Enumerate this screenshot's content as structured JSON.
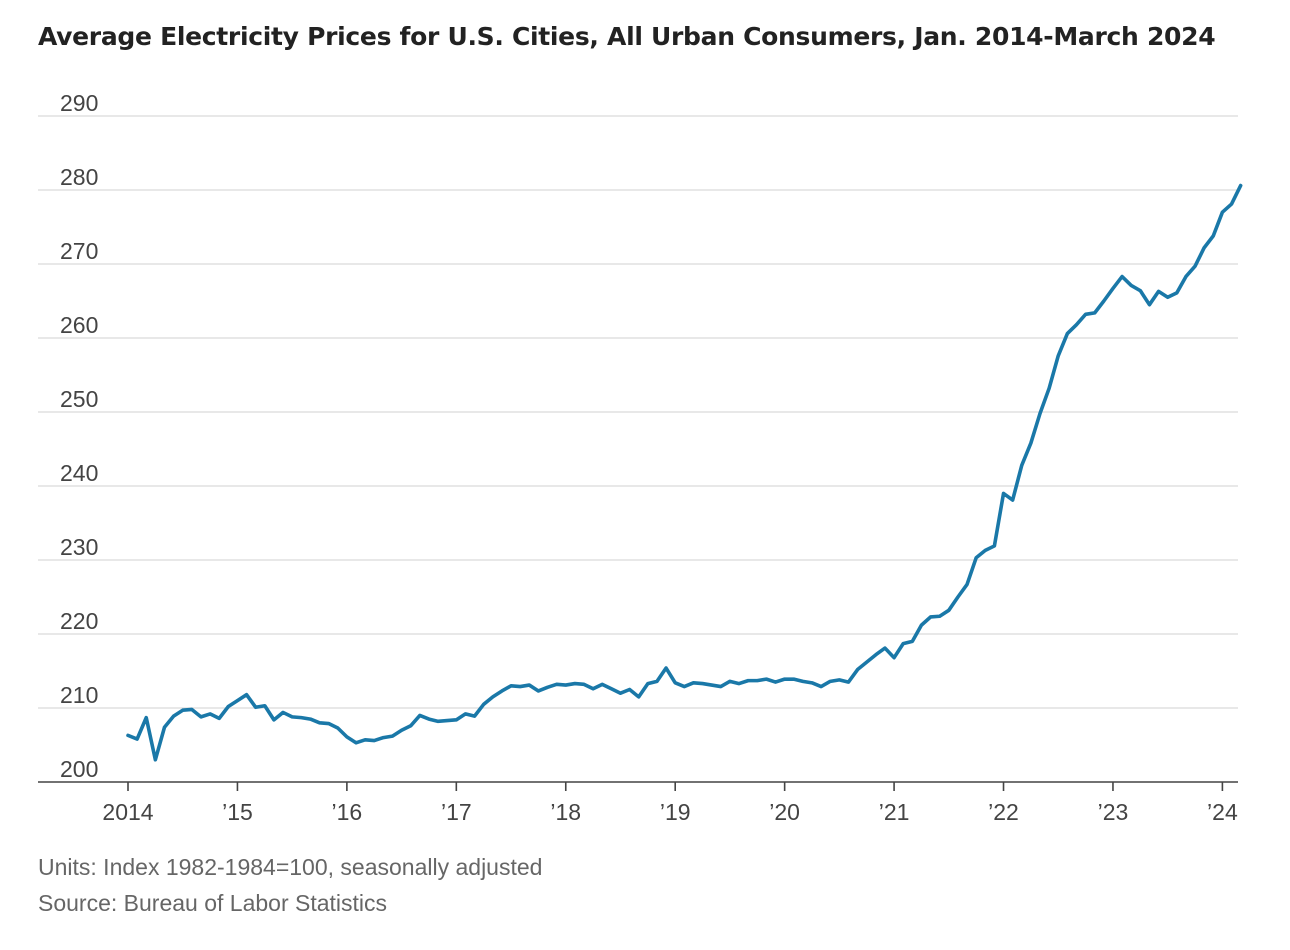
{
  "title": "Average Electricity Prices for U.S. Cities, All Urban Consumers, Jan. 2014-March 2024",
  "footnotes": {
    "units": "Units: Index 1982-1984=100, seasonally adjusted",
    "source": "Source: Bureau of Labor Statistics"
  },
  "colors": {
    "line": "#1a78a8",
    "grid": "#d9d9d9",
    "axis": "#444444",
    "tick_text": "#444444"
  },
  "chart_data": {
    "type": "line",
    "title": "Average Electricity Prices for U.S. Cities, All Urban Consumers, Jan. 2014-March 2024",
    "xlabel": "",
    "ylabel": "",
    "ylim": [
      200,
      290
    ],
    "xlim": [
      "2014-01",
      "2024-03"
    ],
    "y_ticks": [
      200,
      210,
      220,
      230,
      240,
      250,
      260,
      270,
      280,
      290
    ],
    "y_tick_labels": [
      "200",
      "210",
      "220",
      "230",
      "240",
      "250",
      "260",
      "270",
      "280",
      "290"
    ],
    "x_ticks": [
      "2014-01",
      "2015-01",
      "2016-01",
      "2017-01",
      "2018-01",
      "2019-01",
      "2020-01",
      "2021-01",
      "2022-01",
      "2023-01",
      "2024-01"
    ],
    "x_tick_labels": [
      "2014",
      "’15",
      "’16",
      "’17",
      "’18",
      "’19",
      "’20",
      "’21",
      "’22",
      "’23",
      "’24"
    ],
    "grid": true,
    "legend": "none",
    "series": [
      {
        "x": [
          "2014-01",
          "2014-02",
          "2014-03",
          "2014-04",
          "2014-05",
          "2014-06",
          "2014-07",
          "2014-08",
          "2014-09",
          "2014-10",
          "2014-11",
          "2014-12",
          "2015-01",
          "2015-02",
          "2015-03",
          "2015-04",
          "2015-05",
          "2015-06",
          "2015-07",
          "2015-08",
          "2015-09",
          "2015-10",
          "2015-11",
          "2015-12",
          "2016-01",
          "2016-02",
          "2016-03",
          "2016-04",
          "2016-05",
          "2016-06",
          "2016-07",
          "2016-08",
          "2016-09",
          "2016-10",
          "2016-11",
          "2016-12",
          "2017-01",
          "2017-02",
          "2017-03",
          "2017-04",
          "2017-05",
          "2017-06",
          "2017-07",
          "2017-08",
          "2017-09",
          "2017-10",
          "2017-11",
          "2017-12",
          "2018-01",
          "2018-02",
          "2018-03",
          "2018-04",
          "2018-05",
          "2018-06",
          "2018-07",
          "2018-08",
          "2018-09",
          "2018-10",
          "2018-11",
          "2018-12",
          "2019-01",
          "2019-02",
          "2019-03",
          "2019-04",
          "2019-05",
          "2019-06",
          "2019-07",
          "2019-08",
          "2019-09",
          "2019-10",
          "2019-11",
          "2019-12",
          "2020-01",
          "2020-02",
          "2020-03",
          "2020-04",
          "2020-05",
          "2020-06",
          "2020-07",
          "2020-08",
          "2020-09",
          "2020-10",
          "2020-11",
          "2020-12",
          "2021-01",
          "2021-02",
          "2021-03",
          "2021-04",
          "2021-05",
          "2021-06",
          "2021-07",
          "2021-08",
          "2021-09",
          "2021-10",
          "2021-11",
          "2021-12",
          "2022-01",
          "2022-02",
          "2022-03",
          "2022-04",
          "2022-05",
          "2022-06",
          "2022-07",
          "2022-08",
          "2022-09",
          "2022-10",
          "2022-11",
          "2022-12",
          "2023-01",
          "2023-02",
          "2023-03",
          "2023-04",
          "2023-05",
          "2023-06",
          "2023-07",
          "2023-08",
          "2023-09",
          "2023-10",
          "2023-11",
          "2023-12",
          "2024-01",
          "2024-02",
          "2024-03"
        ],
        "values": [
          206.3,
          205.8,
          208.7,
          203.0,
          207.4,
          208.9,
          209.7,
          209.8,
          208.8,
          209.2,
          208.6,
          210.2,
          211.0,
          211.8,
          210.1,
          210.3,
          208.4,
          209.4,
          208.8,
          208.7,
          208.5,
          208.0,
          207.9,
          207.3,
          206.1,
          205.3,
          205.7,
          205.6,
          206.0,
          206.2,
          207.0,
          207.6,
          209.0,
          208.5,
          208.2,
          208.3,
          208.4,
          209.2,
          208.9,
          210.5,
          211.5,
          212.3,
          213.0,
          212.9,
          213.1,
          212.3,
          212.8,
          213.2,
          213.1,
          213.3,
          213.2,
          212.6,
          213.2,
          212.6,
          212.0,
          212.5,
          211.5,
          213.3,
          213.6,
          215.4,
          213.4,
          212.9,
          213.4,
          213.3,
          213.1,
          212.9,
          213.6,
          213.3,
          213.7,
          213.7,
          213.9,
          213.5,
          213.9,
          213.9,
          213.6,
          213.4,
          212.9,
          213.6,
          213.8,
          213.5,
          215.2,
          216.2,
          217.2,
          218.1,
          216.8,
          218.7,
          219.0,
          221.2,
          222.3,
          222.4,
          223.2,
          225.0,
          226.7,
          230.3,
          231.3,
          231.9,
          239.0,
          238.1,
          242.8,
          245.8,
          249.8,
          253.2,
          257.6,
          260.6,
          261.8,
          263.2,
          263.4,
          265.0,
          266.7,
          268.3,
          267.1,
          266.4,
          264.5,
          266.3,
          265.5,
          266.1,
          268.3,
          269.7,
          272.2,
          273.8,
          277.0,
          278.1,
          280.6
        ]
      }
    ]
  }
}
